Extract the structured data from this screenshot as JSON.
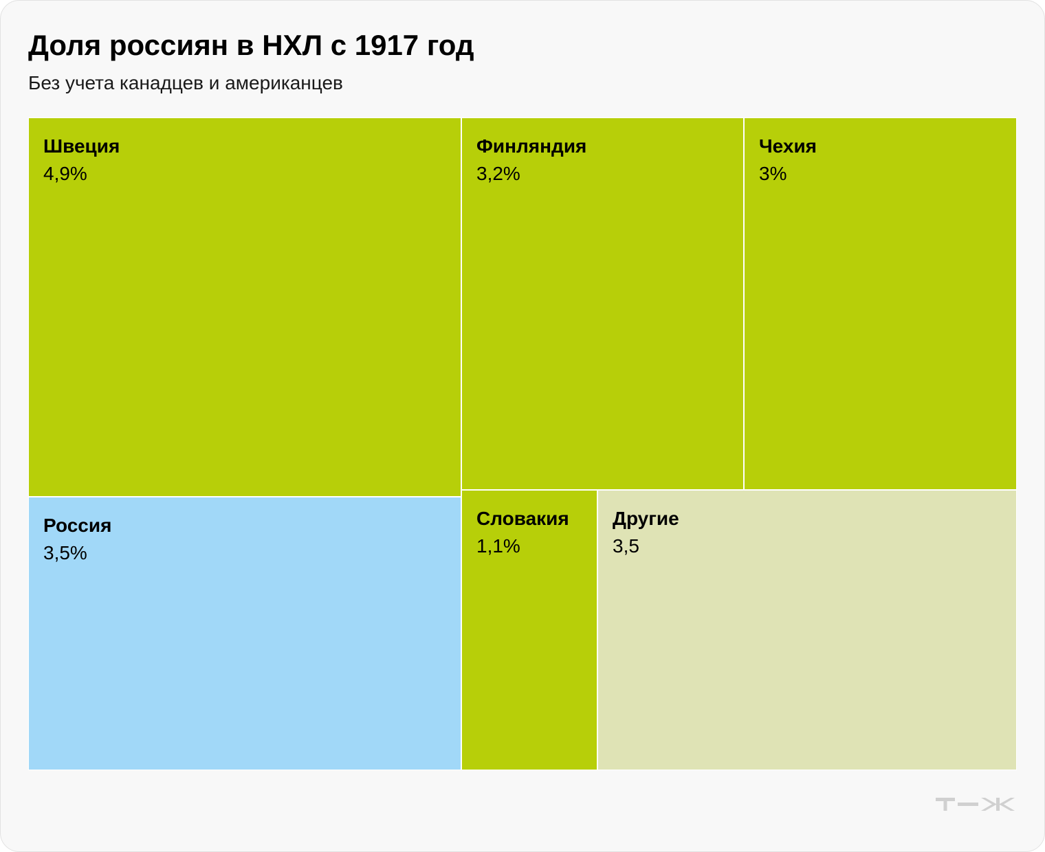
{
  "chart_data": {
    "type": "treemap",
    "title": "Доля россиян в НХЛ с 1917 год",
    "subtitle": "Без учета канадцев и американцев",
    "tiles": [
      {
        "name": "Швеция",
        "label": "4,9%",
        "value": 4.9,
        "color": "#b7cf09"
      },
      {
        "name": "Финляндия",
        "label": "3,2%",
        "value": 3.2,
        "color": "#b7cf09"
      },
      {
        "name": "Чехия",
        "label": "3%",
        "value": 3.0,
        "color": "#b7cf09"
      },
      {
        "name": "Россия",
        "label": "3,5%",
        "value": 3.5,
        "color": "#a1d8f8"
      },
      {
        "name": "Словакия",
        "label": "1,1%",
        "value": 1.1,
        "color": "#b7cf09"
      },
      {
        "name": "Другие",
        "label": "3,5",
        "value": 3.5,
        "color": "#dfe3b5"
      }
    ]
  },
  "logo_text": "т—ж",
  "colors": {
    "highlight": "#a1d8f8",
    "primary": "#b7cf09",
    "other": "#dfe3b5",
    "background": "#f8f8f8"
  }
}
